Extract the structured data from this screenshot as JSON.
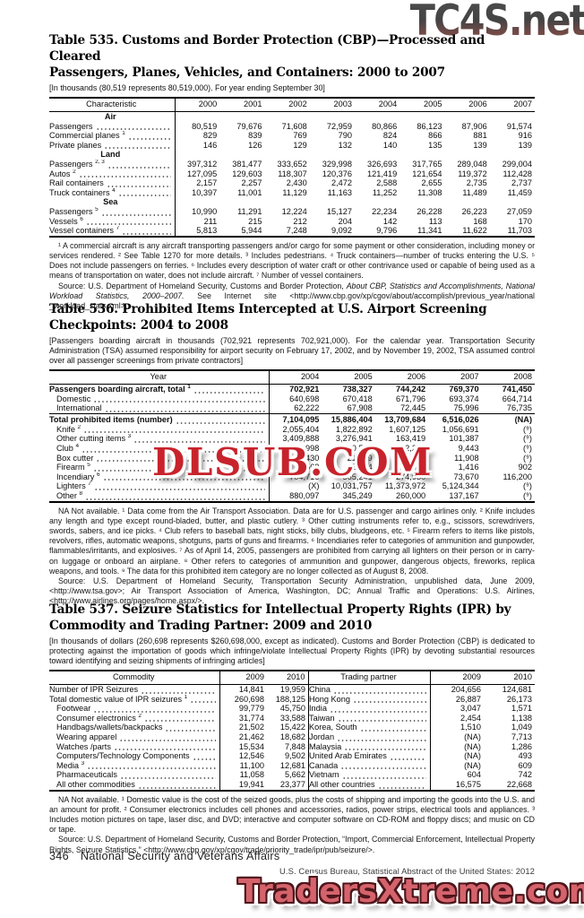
{
  "watermarks": {
    "top": "TC4S.net",
    "middle": "DLSUB.COM",
    "bottom": "TradersXtreme.com"
  },
  "table535": {
    "title_line1": "Table 535. Customs and Border Protection (CBP)—Processed and Cleared",
    "title_line2": "Passengers, Planes, Vehicles, and Containers: 2000 to 2007",
    "note": "[In thousands (80,519 represents 80,519,000). For year ending September 30]",
    "stub_header": "Characteristic",
    "col_headers": [
      "2000",
      "2001",
      "2002",
      "2003",
      "2004",
      "2005",
      "2006",
      "2007"
    ],
    "groups": [
      {
        "name": "Air",
        "rows": [
          {
            "label": "Passengers",
            "sup": "",
            "values": [
              "80,519",
              "79,676",
              "71,608",
              "72,959",
              "80,866",
              "86,123",
              "87,906",
              "91,574"
            ]
          },
          {
            "label": "Commercial planes",
            "sup": "1",
            "values": [
              "829",
              "839",
              "769",
              "790",
              "824",
              "866",
              "881",
              "916"
            ]
          },
          {
            "label": "Private planes",
            "sup": "",
            "values": [
              "146",
              "126",
              "129",
              "132",
              "140",
              "135",
              "139",
              "139"
            ]
          }
        ]
      },
      {
        "name": "Land",
        "rows": [
          {
            "label": "Passengers",
            "sup": "2, 3",
            "values": [
              "397,312",
              "381,477",
              "333,652",
              "329,998",
              "326,693",
              "317,765",
              "289,048",
              "299,004"
            ]
          },
          {
            "label": "Autos",
            "sup": "2",
            "values": [
              "127,095",
              "129,603",
              "118,307",
              "120,376",
              "121,419",
              "121,654",
              "119,372",
              "112,428"
            ]
          },
          {
            "label": "Rail containers",
            "sup": "",
            "values": [
              "2,157",
              "2,257",
              "2,430",
              "2,472",
              "2,588",
              "2,655",
              "2,735",
              "2,737"
            ]
          },
          {
            "label": "Truck containers",
            "sup": "4",
            "values": [
              "10,397",
              "11,001",
              "11,129",
              "11,163",
              "11,252",
              "11,308",
              "11,489",
              "11,459"
            ]
          }
        ]
      },
      {
        "name": "Sea",
        "rows": [
          {
            "label": "Passengers",
            "sup": "5",
            "values": [
              "10,990",
              "11,291",
              "12,224",
              "15,127",
              "22,234",
              "26,228",
              "26,223",
              "27,059"
            ]
          },
          {
            "label": "Vessels",
            "sup": "6",
            "values": [
              "211",
              "215",
              "212",
              "204",
              "142",
              "113",
              "168",
              "170"
            ]
          },
          {
            "label": "Vessel containers",
            "sup": "7",
            "values": [
              "5,813",
              "5,944",
              "7,248",
              "9,092",
              "9,796",
              "11,341",
              "11,622",
              "11,703"
            ]
          }
        ]
      }
    ],
    "footnote": "¹ A commercial aircraft is any aircraft transporting passengers and/or cargo for some payment or other consideration, including money or services rendered. ² See Table 1270 for more details. ³ Includes pedestrians. ⁴ Truck containers—number of trucks entering the U.S. ⁵ Does not include passengers on ferries. ⁶ Includes every description of water craft or other contrivance used or capable of being used as a means of transportation on water, does not include aircraft. ⁷ Number of vessel containers.",
    "source_prefix": "Source: U.S. Department of Homeland Security, Customs and Border Protection, ",
    "source_italic": "About CBP, Statistics and Accomplishments, National Workload Statistics, 2000–2007.",
    "source_suffix": " See Internet site <http://www.cbp.gov/xp/cgov/about/accomplish/previous_year/national _workload_stats.xml>."
  },
  "table536": {
    "title_line1": "Table 536. Prohibited Items Intercepted at U.S. Airport Screening",
    "title_line2": "Checkpoints: 2004 to 2008",
    "note": "[Passengers boarding aircraft in thousands (702,921 represents 702,921,000). For the calendar year. Transportation Security Administration (TSA) assumed responsibility for airport security on February 17, 2002, and by November 19, 2002, TSA assumed control over all passenger screenings from  private contractors]",
    "stub_header": "Year",
    "col_headers": [
      "2004",
      "2005",
      "2006",
      "2007",
      "2008"
    ],
    "rows": [
      {
        "label": "Passengers boarding aircraft, total",
        "sup": "1",
        "bold": true,
        "values": [
          "702,921",
          "738,327",
          "744,242",
          "769,370",
          "741,450"
        ]
      },
      {
        "label": "Domestic",
        "indent": true,
        "values": [
          "640,698",
          "670,418",
          "671,796",
          "693,374",
          "664,714"
        ]
      },
      {
        "label": "International",
        "indent": true,
        "values": [
          "62,222",
          "67,908",
          "72,445",
          "75,996",
          "76,735"
        ]
      },
      {
        "label": "Total prohibited items (number)",
        "bold": true,
        "rule": true,
        "values": [
          "7,104,095",
          "15,886,404",
          "13,709,684",
          "6,516,026",
          "(NA)"
        ]
      },
      {
        "label": "Knife",
        "sup": "2",
        "indent": true,
        "values": [
          "2,055,404",
          "1,822,892",
          "1,607,125",
          "1,056,691",
          "(⁹)"
        ]
      },
      {
        "label": "Other cutting items",
        "sup": "3",
        "indent": true,
        "values": [
          "3,409,888",
          "3,276,941",
          "163,419",
          "101,387",
          "(⁹)"
        ]
      },
      {
        "label": "Club",
        "sup": "4",
        "indent": true,
        "values": [
          "28,998",
          "20,531",
          "12,296",
          "9,443",
          "(⁹)"
        ]
      },
      {
        "label": "Box cutter",
        "indent": true,
        "values": [
          "22,430",
          "21,319",
          "15,999",
          "11,908",
          "(⁹)"
        ]
      },
      {
        "label": "Firearm",
        "sup": "5",
        "indent": true,
        "values": [
          "2,562",
          "2,474",
          "1,943",
          "1,416",
          "902"
        ]
      },
      {
        "label": "Incendiary",
        "sup": "6",
        "indent": true,
        "values": [
          "704,716",
          "365,241",
          "274,930",
          "73,670",
          "116,200"
        ]
      },
      {
        "label": "Lighters",
        "sup": "7",
        "indent": true,
        "values": [
          "(X)",
          "10,031,757",
          "11,373,972",
          "5,124,344",
          "(⁹)"
        ]
      },
      {
        "label": "Other",
        "sup": "8",
        "indent": true,
        "values": [
          "880,097",
          "345,249",
          "260,000",
          "137,167",
          "(⁹)"
        ]
      }
    ],
    "footnote": "NA Not available. ¹ Data come from the Air Transport Association. Data are for U.S. passenger and cargo airlines only. ² Knife includes any length and type except round-bladed, butter, and plastic cutlery. ³ Other cutting instruments refer to, e.g., scissors, screwdrivers, swords, sabers, and ice picks. ⁴ Club refers to baseball bats, night sticks, billy clubs, bludgeons, etc. ⁵ Firearm refers to items like pistols, revolvers, rifles, automatic  weapons, shotguns, parts of guns and firearms. ⁶ Incendiaries refer to categories of ammunition and gunpowder, flammables/irritants, and explosives. ⁷ As of April 14, 2005, passengers are prohibited from carrying all lighters on their person or in carry-on luggage or onboard an airplane. ⁸ Other refers to categories of ammunition and gunpower, dangerous objects, fireworks, replica weapons, and tools. ⁹ The data for this prohibited item category are no longer collected as of August 8, 2008.",
    "source": "Source: U.S. Department of Homeland Security, Transportation Security Administration, unpublished data, June 2009, <http://www.tsa.gov>; Air Transport Association of America, Washington, DC; Annual Traffic and Operations: U.S. Airlines, <http://www.airlines.org/pages/home.aspx/>."
  },
  "table537": {
    "title_line1": "Table 537. Seizure Statistics for Intellectual Property Rights (IPR) by",
    "title_line2": "Commodity and Trading Partner: 2009 and 2010",
    "note": "[In thousands of dollars (260,698 represents $260,698,000, except as indicated). Customs and Border Protection (CBP) is dedicated to protecting against the importation of goods which infringe/violate Intellectual Property Rights (IPR) by devoting substantial resources toward identifying and seizing shipments of infringing articles]",
    "left_header": "Commodity",
    "right_header": "Trading partner",
    "col_headers": [
      "2009",
      "2010"
    ],
    "left_rows": [
      {
        "label": "Number of IPR Seizures",
        "values": [
          "14,841",
          "19,959"
        ]
      },
      {
        "label": "Total domestic value of IPR seizures",
        "sup": "1",
        "values": [
          "260,698",
          "188,125"
        ]
      },
      {
        "label": "Footwear",
        "indent": true,
        "values": [
          "99,779",
          "45,750"
        ]
      },
      {
        "label": "Consumer electronics",
        "sup": "2",
        "indent": true,
        "values": [
          "31,774",
          "33,588"
        ]
      },
      {
        "label": "Handbags/wallets/backpacks",
        "indent": true,
        "values": [
          "21,502",
          "15,422"
        ]
      },
      {
        "label": "Wearing apparel",
        "indent": true,
        "values": [
          "21,462",
          "18,682"
        ]
      },
      {
        "label": "Watches /parts",
        "indent": true,
        "values": [
          "15,534",
          "7,848"
        ]
      },
      {
        "label": "Computers/Technology Components",
        "indent": true,
        "values": [
          "12,546",
          "9,502"
        ]
      },
      {
        "label": "Media",
        "sup": "3",
        "indent": true,
        "values": [
          "11,100",
          "12,681"
        ]
      },
      {
        "label": "Pharmaceuticals",
        "indent": true,
        "values": [
          "11,058",
          "5,662"
        ]
      },
      {
        "label": "All other commodities",
        "indent": true,
        "values": [
          "19,941",
          "23,377"
        ]
      }
    ],
    "right_rows": [
      {
        "label": "China",
        "values": [
          "204,656",
          "124,681"
        ]
      },
      {
        "label": "Hong Kong",
        "values": [
          "26,887",
          "26,173"
        ]
      },
      {
        "label": "India",
        "values": [
          "3,047",
          "1,571"
        ]
      },
      {
        "label": "Taiwan",
        "values": [
          "2,454",
          "1,138"
        ]
      },
      {
        "label": "Korea, South",
        "values": [
          "1,510",
          "1,049"
        ]
      },
      {
        "label": "Jordan",
        "values": [
          "(NA)",
          "7,713"
        ]
      },
      {
        "label": "Malaysia",
        "values": [
          "(NA)",
          "1,286"
        ]
      },
      {
        "label": "United Arab Emirates",
        "values": [
          "(NA)",
          "493"
        ]
      },
      {
        "label": "Canada",
        "values": [
          "(NA)",
          "609"
        ]
      },
      {
        "label": "Vietnam",
        "values": [
          "604",
          "742"
        ]
      },
      {
        "label": "All other countries",
        "values": [
          "16,575",
          "22,668"
        ]
      }
    ],
    "footnote": "NA Not available. ¹ Domestic value is the cost of the seized goods, plus the costs of shipping  and importing the goods into the U.S. and an amount for profit. ² Consumer electronics includes cell phones and accessories, radios, power strips, electrical tools and appliances. ³ Includes motion pictures on tape, laser disc, and DVD; interactive and computer software on CD-ROM and floppy discs; and music on CD or tape.",
    "source": "Source: U.S. Department of Homeland Security, Customs and Border Protection, “Import,  Commercial Enforcement, Intellectual Property Rights, Seizure Statistics,” <http://www.cbp.gov/xp/cgov/trade/priority_trade/ipr/pub/seizure/>."
  },
  "footer": {
    "page_number": "346",
    "section_title": "National Security and Veterans Affairs",
    "credit": "U.S. Census Bureau, Statistical Abstract of the United States: 2012"
  },
  "colors": {
    "watermark_mid_red": "#c8232c",
    "watermark_bottom_fill": "#d5636c",
    "watermark_top_gray": "#3d3d3d",
    "watermark_top_red": "#96564c"
  }
}
